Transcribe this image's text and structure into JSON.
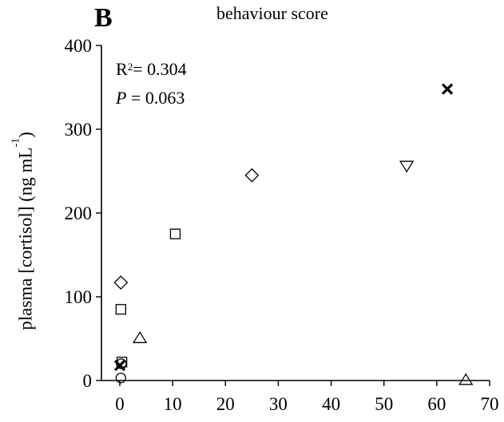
{
  "panel_letter": "B",
  "stats": {
    "r2_prefix": "R",
    "r2_sup": "2",
    "r2_value": "= 0.304",
    "p_label": "P",
    "p_value": " = 0.063"
  },
  "chart_data": {
    "type": "scatter",
    "title": "",
    "xlabel": "behaviour score",
    "ylabel": {
      "text": "plasma [cortisol] (ng mL",
      "sup": "-1",
      "close": ")"
    },
    "xlim": [
      0,
      70
    ],
    "ylim": [
      0,
      400
    ],
    "xticks": [
      "0",
      "10",
      "20",
      "30",
      "40",
      "50",
      "60",
      "70"
    ],
    "yticks": [
      "0",
      "100",
      "200",
      "300",
      "400"
    ],
    "grid": false,
    "points": [
      {
        "marker": "circle",
        "x": 0.2,
        "y": 3
      },
      {
        "marker": "circle",
        "x": 0.3,
        "y": 20
      },
      {
        "marker": "cross-bold",
        "x": 0.0,
        "y": 18
      },
      {
        "marker": "square",
        "x": 0.4,
        "y": 22
      },
      {
        "marker": "square",
        "x": 0.2,
        "y": 85
      },
      {
        "marker": "square",
        "x": 10.5,
        "y": 175
      },
      {
        "marker": "diamond",
        "x": 0.2,
        "y": 117
      },
      {
        "marker": "diamond",
        "x": 25.0,
        "y": 245
      },
      {
        "marker": "triangle-up",
        "x": 3.8,
        "y": 51
      },
      {
        "marker": "triangle-up",
        "x": 65.5,
        "y": 1
      },
      {
        "marker": "triangle-down",
        "x": 54.3,
        "y": 256
      },
      {
        "marker": "cross-bold",
        "x": 62.0,
        "y": 348
      }
    ]
  }
}
